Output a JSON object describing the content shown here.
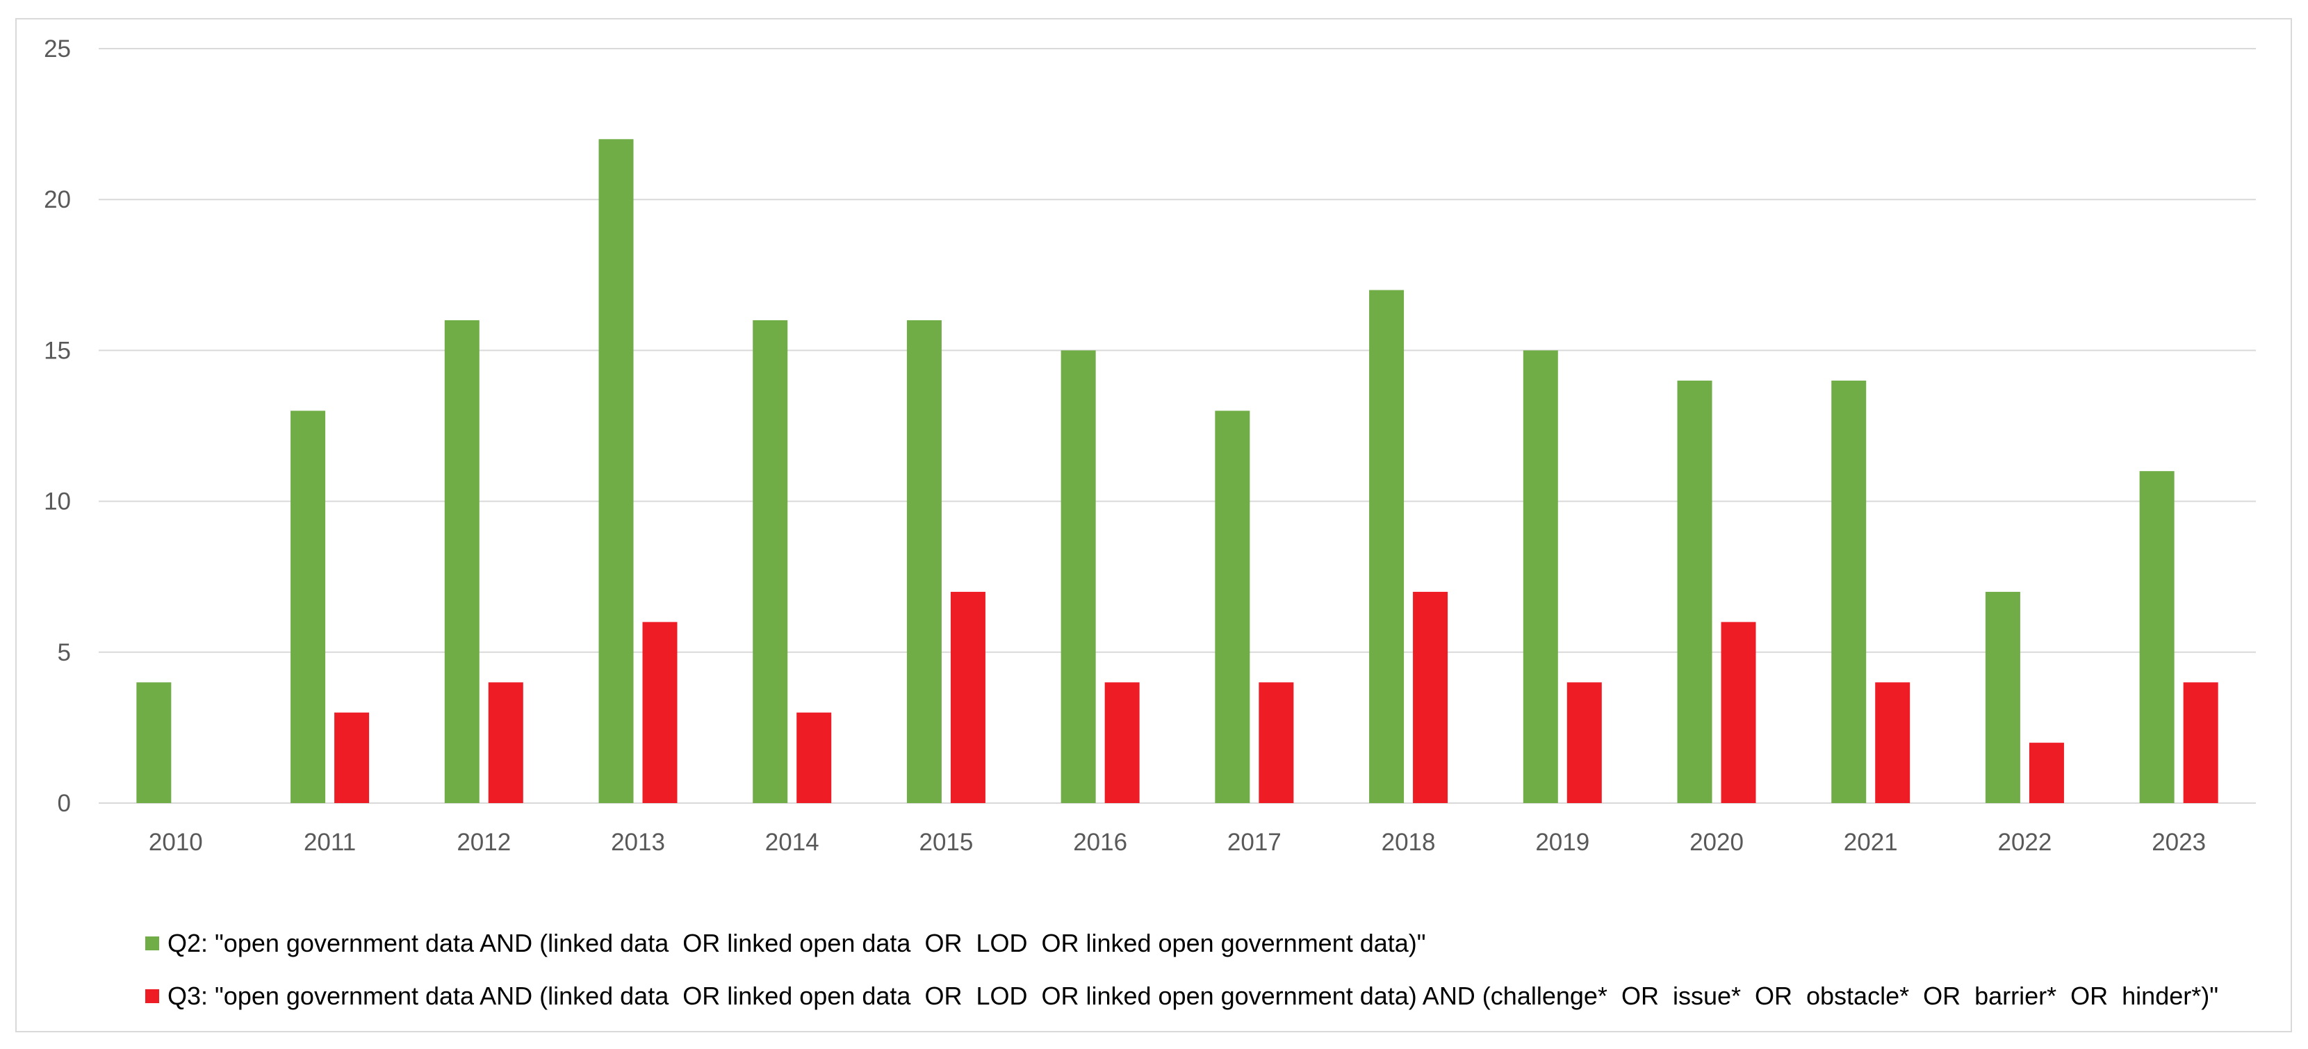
{
  "chart_data": {
    "type": "bar",
    "title": "",
    "xlabel": "",
    "ylabel": "",
    "ylim": [
      0,
      25
    ],
    "yticks": [
      0,
      5,
      10,
      15,
      20,
      25
    ],
    "grid": true,
    "legend_position": "bottom-left",
    "categories": [
      "2010",
      "2011",
      "2012",
      "2013",
      "2014",
      "2015",
      "2016",
      "2017",
      "2018",
      "2019",
      "2020",
      "2021",
      "2022",
      "2023"
    ],
    "series": [
      {
        "name": "Q2: \"open government data AND (linked data  OR linked open data  OR  LOD  OR linked open government data)\"",
        "color": "#70ad47",
        "values": [
          4,
          13,
          16,
          22,
          16,
          16,
          15,
          13,
          17,
          15,
          14,
          14,
          7,
          11
        ]
      },
      {
        "name": "Q3: \"open government data AND (linked data  OR linked open data  OR  LOD  OR linked open government data) AND (challenge*  OR  issue*  OR  obstacle*  OR  barrier*  OR  hinder*)\"",
        "color": "#ee1c25",
        "values": [
          0,
          3,
          4,
          6,
          3,
          7,
          4,
          4,
          7,
          4,
          6,
          4,
          2,
          4
        ]
      }
    ]
  }
}
